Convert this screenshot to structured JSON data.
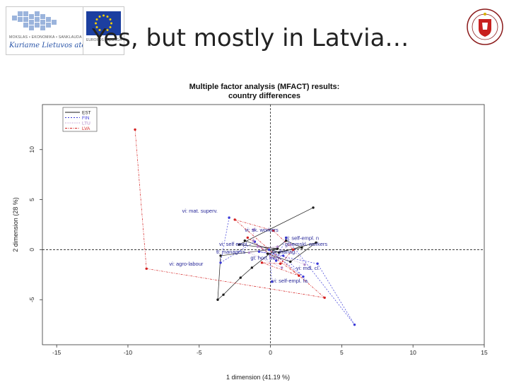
{
  "slide": {
    "title": "Yes, but mostly in Latvia…",
    "logo_left_caption": "MOKSLAS • EKONOMIKA • SANKLAUDA",
    "logo_left_motto": "Kuriame Lietuvos ateitį",
    "logo_eu_caption": "EUROPOS SĄJUNGA"
  },
  "chart_data": {
    "type": "scatter",
    "title": "Multiple factor analysis (MFACT) results:",
    "subtitle": "country differences",
    "xlabel": "1 dimension (41.19 %)",
    "ylabel": "2 dimension (28 %)",
    "xlim": [
      -16,
      15
    ],
    "ylim": [
      -9.5,
      14.5
    ],
    "xticks": [
      -15,
      -10,
      -5,
      0,
      5,
      10,
      15
    ],
    "yticks": [
      -5,
      0,
      5,
      10
    ],
    "grid": false,
    "reference_lines": {
      "x": 0,
      "y": 0
    },
    "legend_position": "top-left",
    "colors": {
      "EST": "#1a1a1a",
      "FIN": "#3a3ad8",
      "LTU": "#b088c8",
      "LVA": "#d42020"
    },
    "series": [
      {
        "name": "EST",
        "points": [
          [
            3.0,
            4.2
          ],
          [
            -2.2,
            0.5
          ],
          [
            0.5,
            0.1
          ],
          [
            -3.5,
            -0.6
          ],
          [
            -3.7,
            -5.0
          ],
          [
            -3.3,
            -4.5
          ],
          [
            -2.1,
            -2.8
          ],
          [
            -1.3,
            -1.8
          ],
          [
            1.1,
            0.9
          ],
          [
            2.2,
            0.2
          ],
          [
            -0.2,
            -0.4
          ],
          [
            1.4,
            -1.2
          ],
          [
            3.2,
            0.7
          ],
          [
            0.6,
            -0.3
          ],
          [
            -1.8,
            0.9
          ]
        ]
      },
      {
        "name": "FIN",
        "points": [
          [
            -2.9,
            3.2
          ],
          [
            -3.5,
            -1.3
          ],
          [
            -1.1,
            0.8
          ],
          [
            0.4,
            -1.1
          ],
          [
            1.1,
            1.2
          ],
          [
            5.9,
            -7.5
          ],
          [
            3.3,
            -1.4
          ],
          [
            -0.8,
            -0.2
          ],
          [
            0.9,
            -0.6
          ],
          [
            2.3,
            -2.7
          ],
          [
            -0.1,
            0.0
          ],
          [
            0.1,
            -3.2
          ]
        ]
      },
      {
        "name": "LTU",
        "points": [
          [
            -1.2,
            2.0
          ],
          [
            -1.2,
            0.9
          ],
          [
            0.0,
            -0.8
          ],
          [
            1.4,
            0.5
          ],
          [
            2.4,
            -1.5
          ],
          [
            -0.9,
            0.3
          ],
          [
            0.5,
            0.3
          ],
          [
            -1.5,
            -0.3
          ],
          [
            0.8,
            -1.8
          ]
        ]
      },
      {
        "name": "LVA",
        "points": [
          [
            -9.5,
            12.0
          ],
          [
            -8.7,
            -1.9
          ],
          [
            3.8,
            -4.8
          ],
          [
            -2.5,
            3.0
          ],
          [
            0.2,
            1.9
          ],
          [
            1.6,
            0.0
          ],
          [
            0.7,
            -1.4
          ],
          [
            -0.6,
            -1.3
          ],
          [
            2.0,
            -2.6
          ],
          [
            -1.6,
            1.2
          ]
        ]
      }
    ],
    "annotations": [
      {
        "text": "vi: mat. superv.",
        "x": -6.2,
        "y": 3.7
      },
      {
        "text": "vi: sk. workers",
        "x": -1.8,
        "y": 1.8
      },
      {
        "text": "vi: self-empl. n",
        "x": 1.0,
        "y": 1.0
      },
      {
        "text": "vi: self empl.",
        "x": -3.6,
        "y": 0.4
      },
      {
        "text": "gt: emskl. workers",
        "x": 1.0,
        "y": 0.4
      },
      {
        "text": "tl: managers",
        "x": -3.8,
        "y": -0.4
      },
      {
        "text": "vi: manag.",
        "x": 0.1,
        "y": -0.4
      },
      {
        "text": "gt: hort. serv.",
        "x": -1.4,
        "y": -1.0
      },
      {
        "text": "vi: agro-labour",
        "x": -7.1,
        "y": -1.6
      },
      {
        "text": "vi: mdl. cl.",
        "x": 1.8,
        "y": -2.0
      },
      {
        "text": "vi: self-empl. fa.",
        "x": 0.1,
        "y": -3.3
      }
    ]
  }
}
